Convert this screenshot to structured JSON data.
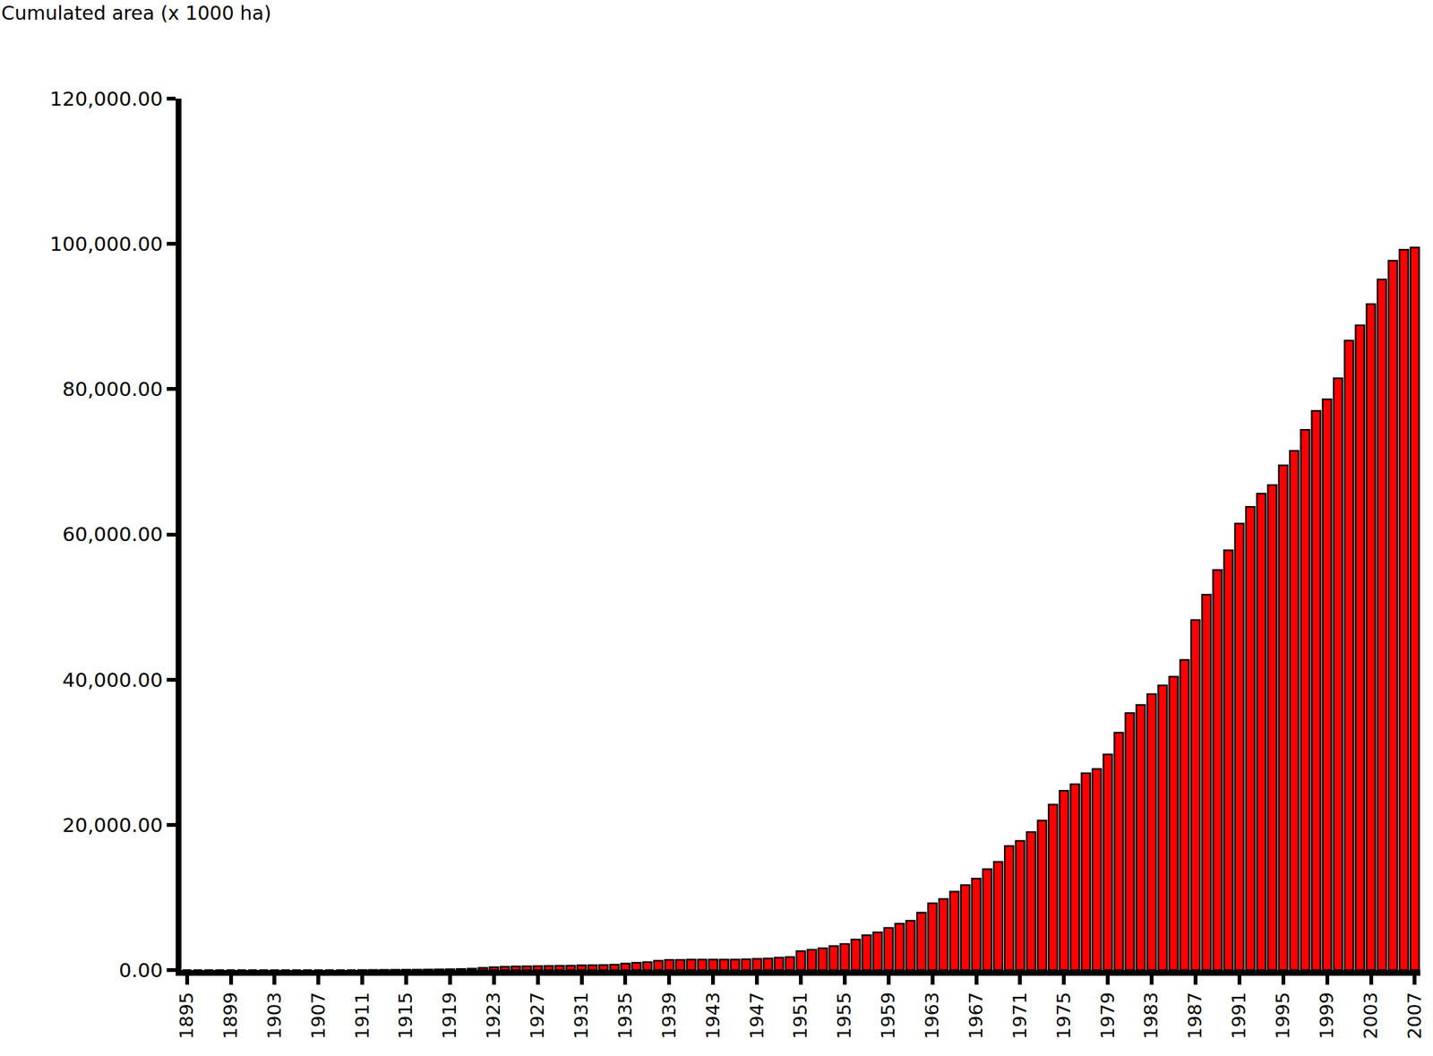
{
  "chart_data": {
    "type": "bar",
    "y_label": "Cumulated area (x 1000 ha)",
    "categories": [
      "1895",
      null,
      null,
      null,
      "1899",
      null,
      null,
      null,
      "1903",
      null,
      null,
      null,
      "1907",
      null,
      null,
      null,
      "1911",
      null,
      null,
      null,
      "1915",
      null,
      null,
      null,
      "1919",
      null,
      null,
      null,
      "1923",
      null,
      null,
      null,
      "1927",
      null,
      null,
      null,
      "1931",
      null,
      null,
      null,
      "1935",
      null,
      null,
      null,
      "1939",
      null,
      null,
      null,
      "1943",
      null,
      null,
      null,
      "1947",
      null,
      null,
      null,
      "1951",
      null,
      null,
      null,
      "1955",
      null,
      null,
      null,
      "1959",
      null,
      null,
      null,
      "1963",
      null,
      null,
      null,
      "1967",
      null,
      null,
      null,
      "1971",
      null,
      null,
      null,
      "1975",
      null,
      null,
      null,
      "1979",
      null,
      null,
      null,
      "1983",
      null,
      null,
      null,
      "1987",
      null,
      null,
      null,
      "1991",
      null,
      null,
      null,
      "1995",
      null,
      null,
      null,
      "1999",
      null,
      null,
      null,
      "2003",
      null,
      null,
      null,
      "2007"
    ],
    "values": [
      0,
      0,
      0,
      0,
      0,
      0,
      0,
      0,
      0,
      0,
      0,
      0,
      0,
      0,
      0,
      0,
      10,
      20,
      30,
      40,
      50,
      60,
      80,
      100,
      120,
      150,
      200,
      300,
      400,
      450,
      500,
      520,
      550,
      570,
      600,
      620,
      650,
      680,
      700,
      750,
      900,
      1000,
      1100,
      1300,
      1400,
      1400,
      1450,
      1450,
      1450,
      1450,
      1450,
      1500,
      1550,
      1600,
      1700,
      1800,
      2600,
      2800,
      3000,
      3300,
      3600,
      4200,
      4800,
      5200,
      5800,
      6400,
      6800,
      7900,
      9200,
      9800,
      10800,
      11700,
      12600,
      13900,
      14900,
      17100,
      17800,
      19000,
      20600,
      22800,
      24700,
      25600,
      27100,
      27700,
      29700,
      32700,
      35400,
      36500,
      38000,
      39200,
      40400,
      42700,
      48200,
      51700,
      55100,
      57800,
      61500,
      63800,
      65600,
      66800,
      69500,
      71500,
      74400,
      77000,
      78600,
      81500,
      86700,
      88800,
      91700,
      95100,
      97700,
      99200,
      99500
    ],
    "color": "#ff0000",
    "ylim": [
      0,
      120000
    ],
    "yticks": [
      {
        "value": 0,
        "label": "0.00"
      },
      {
        "value": 20000,
        "label": "20,000.00"
      },
      {
        "value": 40000,
        "label": "40,000.00"
      },
      {
        "value": 60000,
        "label": "60,000.00"
      },
      {
        "value": 80000,
        "label": "80,000.00"
      },
      {
        "value": 100000,
        "label": "100,000.00"
      },
      {
        "value": 120000,
        "label": "120,000.00"
      }
    ],
    "grid": false,
    "legend": false
  }
}
